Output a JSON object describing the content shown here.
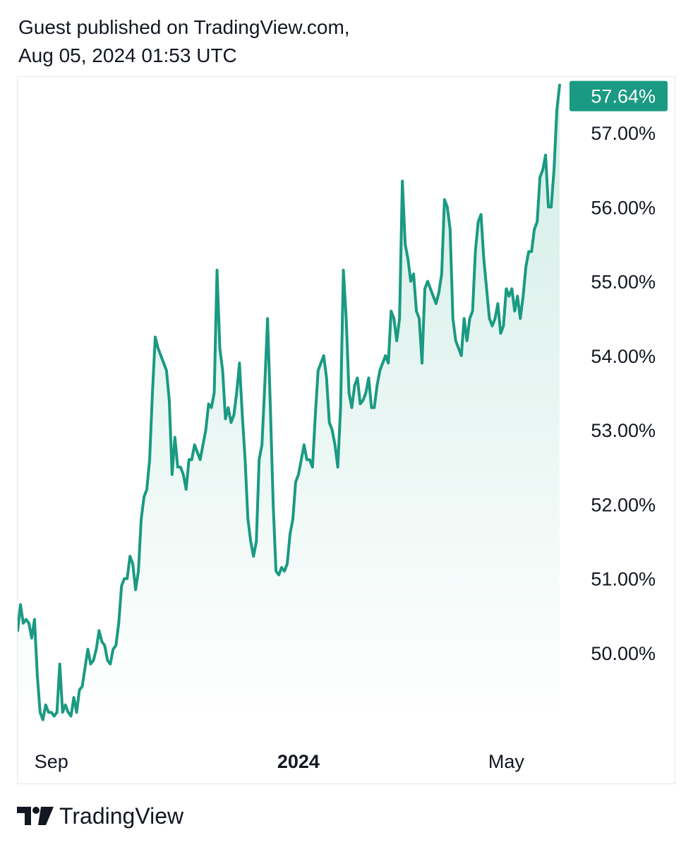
{
  "publication": {
    "line1": "Guest published on TradingView.com,",
    "line2": "Aug 05, 2024 01:53 UTC"
  },
  "brand": {
    "name": "TradingView",
    "logo_icon": "tradingview-logo-icon"
  },
  "colors": {
    "line": "#1a9a82",
    "fill_top": "#d2ede6",
    "fill_bottom": "#ffffff",
    "last_label_bg": "#1a9a82",
    "last_label_text": "#ffffff"
  },
  "chart_data": {
    "type": "area",
    "title": "",
    "xlabel": "",
    "ylabel": "",
    "y_axis_position": "right",
    "ylim": [
      49.1,
      57.7
    ],
    "y_ticks": [
      50,
      51,
      52,
      53,
      54,
      55,
      56,
      57
    ],
    "y_tick_labels": [
      "50.00%",
      "51.00%",
      "52.00%",
      "53.00%",
      "54.00%",
      "55.00%",
      "56.00%",
      "57.00%"
    ],
    "x_ticks": [
      {
        "label": "Sep",
        "index": 12,
        "bold": false
      },
      {
        "label": "2024",
        "index": 100,
        "bold": true
      },
      {
        "label": "May",
        "index": 174,
        "bold": false
      }
    ],
    "last_value_label": "57.64%",
    "last_value": 57.64,
    "grid": false,
    "series": [
      {
        "values": [
          50.3,
          50.65,
          50.4,
          50.45,
          50.4,
          50.2,
          50.45,
          49.7,
          49.2,
          49.1,
          49.3,
          49.2,
          49.2,
          49.15,
          49.2,
          49.85,
          49.2,
          49.3,
          49.2,
          49.15,
          49.4,
          49.2,
          49.5,
          49.55,
          49.8,
          50.05,
          49.85,
          49.9,
          50.05,
          50.3,
          50.15,
          50.1,
          49.9,
          49.85,
          50.05,
          50.1,
          50.4,
          50.9,
          51.0,
          51.0,
          51.3,
          51.2,
          50.85,
          51.1,
          51.8,
          52.1,
          52.2,
          52.6,
          53.5,
          54.25,
          54.1,
          54.0,
          53.9,
          53.8,
          53.4,
          52.4,
          52.9,
          52.5,
          52.5,
          52.4,
          52.2,
          52.6,
          52.6,
          52.8,
          52.7,
          52.6,
          52.8,
          53.0,
          53.35,
          53.3,
          53.5,
          55.15,
          54.1,
          53.8,
          53.15,
          53.3,
          53.1,
          53.2,
          53.5,
          53.9,
          53.2,
          52.6,
          51.8,
          51.5,
          51.3,
          51.5,
          52.6,
          52.8,
          53.6,
          54.5,
          53.3,
          52.0,
          51.1,
          51.05,
          51.15,
          51.1,
          51.2,
          51.6,
          51.8,
          52.3,
          52.4,
          52.6,
          52.8,
          52.6,
          52.6,
          52.5,
          53.2,
          53.8,
          53.9,
          54.0,
          53.7,
          53.1,
          53.0,
          52.8,
          52.5,
          53.3,
          55.15,
          54.5,
          53.5,
          53.3,
          53.6,
          53.7,
          53.35,
          53.4,
          53.5,
          53.7,
          53.3,
          53.3,
          53.6,
          53.8,
          53.9,
          54.0,
          53.9,
          54.6,
          54.5,
          54.2,
          54.5,
          56.35,
          55.5,
          55.3,
          55.0,
          55.1,
          54.6,
          54.5,
          53.9,
          54.9,
          55.0,
          54.9,
          54.8,
          54.7,
          54.85,
          55.1,
          56.1,
          56.0,
          55.7,
          54.5,
          54.2,
          54.1,
          54.0,
          54.5,
          54.2,
          54.5,
          54.6,
          55.4,
          55.8,
          55.9,
          55.3,
          54.9,
          54.5,
          54.4,
          54.5,
          54.7,
          54.3,
          54.4,
          54.9,
          54.8,
          54.9,
          54.6,
          54.8,
          54.5,
          54.8,
          55.2,
          55.4,
          55.4,
          55.7,
          55.8,
          56.4,
          56.5,
          56.7,
          56.0,
          56.0,
          56.5,
          57.3,
          57.64
        ]
      }
    ]
  }
}
